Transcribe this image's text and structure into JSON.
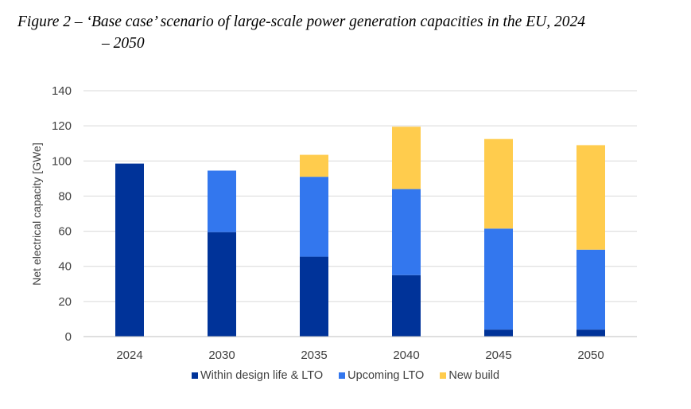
{
  "figure": {
    "title_line1": "Figure 2 – ‘Base case’ scenario of large-scale power generation capacities in the EU, 2024",
    "title_line2": "– 2050"
  },
  "chart_data": {
    "type": "bar",
    "stacked": true,
    "categories": [
      "2024",
      "2030",
      "2035",
      "2040",
      "2045",
      "2050"
    ],
    "series": [
      {
        "name": "Within design life & LTO",
        "color": "#003399",
        "values": [
          98.5,
          59.5,
          45.5,
          35,
          4,
          4
        ]
      },
      {
        "name": "Upcoming LTO",
        "color": "#3377EE",
        "values": [
          0,
          35,
          45.5,
          49,
          57.5,
          45.5
        ]
      },
      {
        "name": "New build",
        "color": "#FFCC4D",
        "values": [
          0,
          0,
          12.5,
          35.5,
          51,
          59.5
        ]
      }
    ],
    "ylabel": "Net electrical capacity [GWe]",
    "ylim": [
      0,
      140
    ],
    "yticks": [
      "0",
      "20",
      "40",
      "60",
      "80",
      "100",
      "120",
      "140"
    ],
    "grid": true,
    "legend_position": "bottom"
  }
}
